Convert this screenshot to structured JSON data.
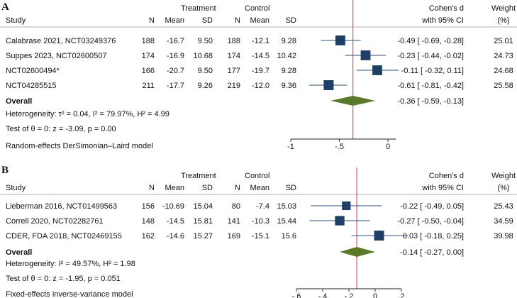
{
  "chart_data": [
    {
      "type": "forest",
      "panel_label": "A",
      "header": {
        "study": "Study",
        "treatment": "Treatment",
        "control": "Control",
        "n": "N",
        "mean": "Mean",
        "sd": "SD",
        "effect_line1": "Cohen's d",
        "effect_line2": "with 95% CI",
        "weight_line1": "Weight",
        "weight_line2": "(%)"
      },
      "studies": [
        {
          "name": "Calabrase 2021, NCT03249376",
          "t_n": "188",
          "t_mean": "-16.7",
          "t_sd": "9.50",
          "c_n": "188",
          "c_mean": "-12.1",
          "c_sd": "9.28",
          "d": -0.49,
          "lo": -0.69,
          "hi": -0.28,
          "ci_text": "-0.49 [ -0.69, -0.28]",
          "weight": "25.01",
          "weight_value": 25.01
        },
        {
          "name": "Suppes 2023, NCT02600507",
          "t_n": "174",
          "t_mean": "-16.9",
          "t_sd": "10.68",
          "c_n": "174",
          "c_mean": "-14.5",
          "c_sd": "10.42",
          "d": -0.23,
          "lo": -0.44,
          "hi": -0.02,
          "ci_text": "-0.23 [ -0.44, -0.02]",
          "weight": "24.73",
          "weight_value": 24.73
        },
        {
          "name": "NCT02600494*",
          "t_n": "166",
          "t_mean": "-20.7",
          "t_sd": "9.50",
          "c_n": "177",
          "c_mean": "-19.7",
          "c_sd": "9.28",
          "d": -0.11,
          "lo": -0.32,
          "hi": 0.11,
          "ci_text": "-0.11 [ -0.32,  0.11]",
          "weight": "24.68",
          "weight_value": 24.68
        },
        {
          "name": "NCT04285515",
          "t_n": "211",
          "t_mean": "-17.7",
          "t_sd": "9.26",
          "c_n": "219",
          "c_mean": "-12.0",
          "c_sd": "9.36",
          "d": -0.61,
          "lo": -0.81,
          "hi": -0.42,
          "ci_text": "-0.61 [ -0.81, -0.42]",
          "weight": "25.58",
          "weight_value": 25.58
        }
      ],
      "overall": {
        "label": "Overall",
        "d": -0.36,
        "lo": -0.59,
        "hi": -0.13,
        "ci_text": "-0.36 [ -0.59, -0.13]"
      },
      "heterogeneity": "Heterogeneity: τ² = 0.04, I² = 79.97%, H² = 4.99",
      "test": "Test of θ = 0: z = -3.09, p = 0.00",
      "model": "Random-effects DerSimonian–Laird model",
      "xlim": [
        -1.0,
        0.08
      ],
      "ticks": [
        -1,
        -0.5,
        0
      ],
      "tick_labels": [
        "-1",
        "-.5",
        "0"
      ],
      "ref_line": -0.36
    },
    {
      "type": "forest",
      "panel_label": "B",
      "header": {
        "study": "Study",
        "treatment": "Treatment",
        "control": "Control",
        "n": "N",
        "mean": "Mean",
        "sd": "SD",
        "effect_line1": "Cohen's d",
        "effect_line2": "with 95% CI",
        "weight_line1": "Weight",
        "weight_line2": "(%)"
      },
      "studies": [
        {
          "name": "Lieberman 2016, NCT01499563",
          "t_n": "156",
          "t_mean": "-10.69",
          "t_sd": "15.04",
          "c_n": "80",
          "c_mean": "-7.4",
          "c_sd": "15.03",
          "d": -0.22,
          "lo": -0.49,
          "hi": 0.05,
          "ci_text": "-0.22 [ -0.49,  0.05]",
          "weight": "25.43",
          "weight_value": 25.43
        },
        {
          "name": "Correll 2020, NCT02282761",
          "t_n": "148",
          "t_mean": "-14.5",
          "t_sd": "15.81",
          "c_n": "141",
          "c_mean": "-10.3",
          "c_sd": "15.44",
          "d": -0.27,
          "lo": -0.5,
          "hi": -0.04,
          "ci_text": "-0.27 [ -0.50, -0.04]",
          "weight": "34.59",
          "weight_value": 34.59
        },
        {
          "name": "CDER, FDA 2018, NCT02469155",
          "t_n": "162",
          "t_mean": "-14.6",
          "t_sd": "15.27",
          "c_n": "169",
          "c_mean": "-15.1",
          "c_sd": "15.6",
          "d": 0.03,
          "lo": -0.18,
          "hi": 0.25,
          "ci_text": " 0.03 [ -0.18,  0.25]",
          "weight": "39.98",
          "weight_value": 39.98
        }
      ],
      "overall": {
        "label": "Overall",
        "d": -0.14,
        "lo": -0.27,
        "hi": 0.0,
        "ci_text": "-0.14 [ -0.27,  0.00]"
      },
      "heterogeneity": "Heterogeneity: I² = 49.57%, H² = 1.98",
      "test": "Test of θ = 0: z = -1.95, p = 0.051",
      "model": "Fixed-effects inverse-variance model",
      "xlim": [
        -0.6,
        0.2
      ],
      "ticks": [
        -0.6,
        -0.4,
        -0.2,
        0,
        0.2
      ],
      "tick_labels": [
        "-.6",
        "-.4",
        "-.2",
        "0",
        ".2"
      ],
      "ref_line": -0.14
    }
  ],
  "colors": {
    "marker": "#1f3f66",
    "ci_line": "#2d4f78",
    "diamond": "#5a7a2a",
    "ref_line": "#c0392b",
    "axis": "#222222"
  }
}
